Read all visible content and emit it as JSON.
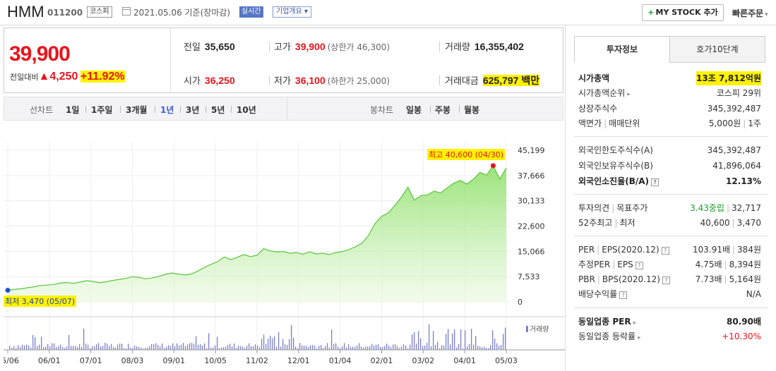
{
  "header": {
    "name": "HMM",
    "code": "011200",
    "market": "코스피",
    "date": "2021.05.06 기준(장마감)",
    "realtime": "실시간",
    "corp_overview": "기업개요",
    "mystock": "MY STOCK 추가",
    "quick_order": "빠른주문"
  },
  "price": {
    "current": "39,900",
    "change_label": "전일대비",
    "change": "4,250",
    "percent": "+11.92%"
  },
  "stats": {
    "prev_label": "전일",
    "prev": "35,650",
    "high_label": "고가",
    "high": "39,900",
    "upper_limit": "(상한가 46,300)",
    "volume_label": "거래량",
    "volume": "16,355,402",
    "open_label": "시가",
    "open": "36,250",
    "low_label": "저가",
    "low": "36,100",
    "lower_limit": "(하한가 25,000)",
    "amount_label": "거래대금",
    "amount": "625,797 백만"
  },
  "periodbar": {
    "line_label": "선차트",
    "line_items": [
      "1일",
      "1주일",
      "3개월",
      "1년",
      "3년",
      "5년",
      "10년"
    ],
    "active": "1년",
    "candle_label": "봉차트",
    "candle_items": [
      "일봉",
      "주봉",
      "월봉"
    ]
  },
  "chart_data": {
    "type": "area",
    "x_ticks": [
      "05/06",
      "06/01",
      "07/01",
      "08/03",
      "09/01",
      "10/05",
      "11/02",
      "12/01",
      "01/04",
      "02/01",
      "03/02",
      "04/01",
      "05/03"
    ],
    "y_ticks": [
      "45,199",
      "37,666",
      "30,133",
      "22,600",
      "15,066",
      "7,533",
      "0"
    ],
    "ylim": [
      0,
      45199
    ],
    "max_label": "최고 40,600 (04/30)",
    "min_label": "최저 3,470 (05/07)",
    "volume_legend": "거래량",
    "price_series": [
      3470,
      3700,
      3900,
      4200,
      4500,
      4900,
      5000,
      5200,
      5600,
      5800,
      5500,
      5900,
      6300,
      6100,
      5700,
      6000,
      6400,
      6700,
      7000,
      7500,
      7300,
      6900,
      7100,
      7600,
      8200,
      8600,
      8300,
      8000,
      8300,
      9200,
      10300,
      11200,
      12000,
      13400,
      12600,
      13300,
      14100,
      13500,
      13900,
      15900,
      15200,
      14900,
      15000,
      14500,
      14700,
      14200,
      14900,
      14300,
      14500,
      14100,
      14700,
      15000,
      15600,
      16400,
      17500,
      19800,
      23400,
      25500,
      26500,
      28700,
      31200,
      34200,
      30300,
      31700,
      31900,
      33000,
      32500,
      34000,
      35400,
      36200,
      35100,
      36600,
      38600,
      37800,
      40600,
      36600,
      39900
    ]
  },
  "right": {
    "tab_info": "투자정보",
    "tab_hoga": "호가10단계",
    "market_cap_label": "시가총액",
    "market_cap": "13조 7,812억원",
    "rank_label": "시가총액순위",
    "rank": "코스피 29위",
    "shares_label": "상장주식수",
    "shares": "345,392,487",
    "face_label": "액면가",
    "trade_unit_label": "매매단위",
    "face": "5,000원",
    "trade_unit": "1주",
    "foreign_limit_label": "외국인한도주식수(A)",
    "foreign_limit": "345,392,487",
    "foreign_hold_label": "외국인보유주식수(B)",
    "foreign_hold": "41,896,064",
    "foreign_rate_label": "외국인소진율(B/A)",
    "foreign_rate": "12.13%",
    "opinion_label": "투자의견",
    "target_label": "목표주가",
    "opinion": "3.43중립",
    "target": "32,717",
    "w52_label": "52주최고",
    "w52_low_label": "최저",
    "w52_high": "40,600",
    "w52_low": "3,470",
    "per_label": "PER",
    "eps_label": "EPS(2020.12)",
    "per": "103.91배",
    "eps": "384원",
    "est_per_label": "추정PER",
    "est_eps_label": "EPS",
    "est_per": "4.75배",
    "est_eps": "8,394원",
    "pbr_label": "PBR",
    "bps_label": "BPS(2020.12)",
    "pbr": "7.73배",
    "bps": "5,164원",
    "div_label": "배당수익률",
    "div": "N/A",
    "sector_per_label": "동일업종 PER",
    "sector_per": "80.90배",
    "sector_rate_label": "동일업종 등락률",
    "sector_rate": "+10.30%"
  }
}
